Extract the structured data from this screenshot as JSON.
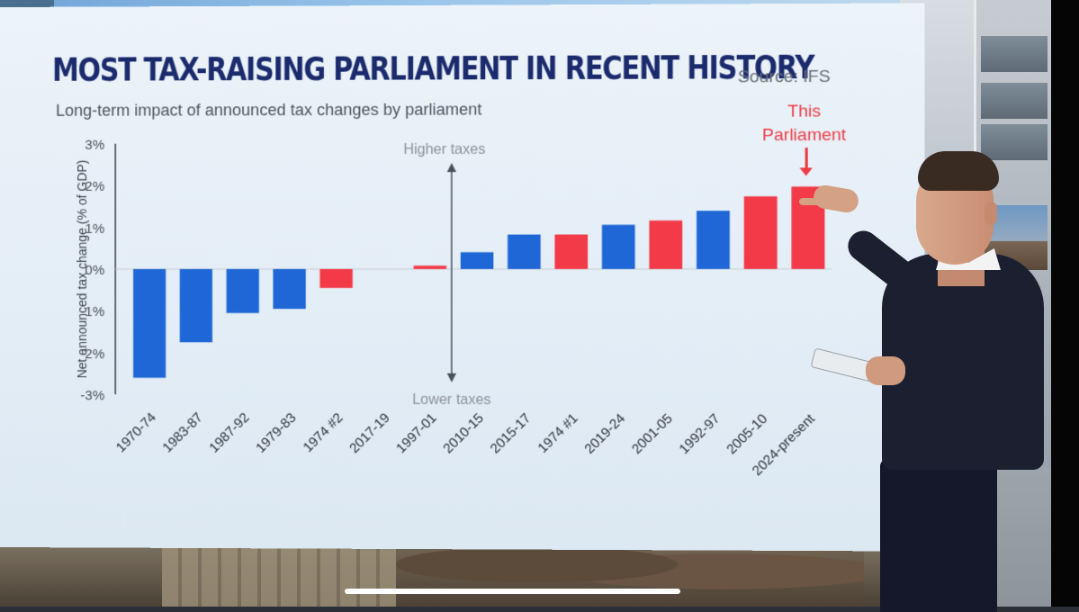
{
  "chart_data": {
    "type": "bar",
    "title": "MOST TAX-RAISING PARLIAMENT IN RECENT HISTORY",
    "subtitle": "Long-term impact of announced tax changes by parliament",
    "source": "Source: IFS",
    "ylabel": "Net announced tax change (% of GDP)",
    "ylim": [
      -3,
      3
    ],
    "yticks": [
      3,
      2,
      1,
      0,
      -1,
      -2,
      -3
    ],
    "ytick_labels": [
      "3%",
      "2%",
      "1%",
      "0%",
      "-1%",
      "-2%",
      "-3%"
    ],
    "categories": [
      "1970-74",
      "1983-87",
      "1987-92",
      "1979-83",
      "1974 #2",
      "2017-19",
      "1997-01",
      "2010-15",
      "2015-17",
      "1974 #1",
      "2019-24",
      "2001-05",
      "1992-97",
      "2005-10",
      "2024-present"
    ],
    "values": [
      -2.6,
      -1.75,
      -1.05,
      -0.95,
      -0.45,
      0.0,
      0.08,
      0.4,
      0.82,
      0.82,
      1.05,
      1.15,
      1.38,
      1.72,
      1.95
    ],
    "bar_colors": [
      "#1f67d6",
      "#1f67d6",
      "#1f67d6",
      "#1f67d6",
      "#f23a48",
      "#f23a48",
      "#f23a48",
      "#1f67d6",
      "#1f67d6",
      "#f23a48",
      "#1f67d6",
      "#f23a48",
      "#1f67d6",
      "#f23a48",
      "#f23a48"
    ],
    "annotations": {
      "higher": "Higher taxes",
      "lower": "Lower taxes",
      "callout_line1": "This",
      "callout_line2": "Parliament"
    },
    "grid": false,
    "legend": "none"
  }
}
